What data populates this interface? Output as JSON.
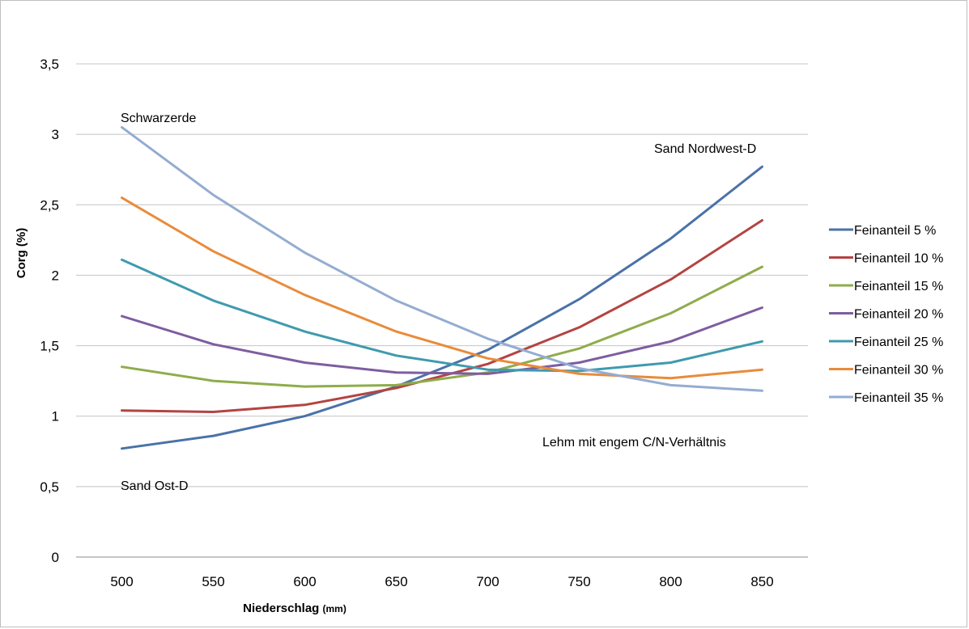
{
  "chart_data": {
    "type": "line",
    "xlabel": "Niederschlag",
    "xlabel_unit": "(mm)",
    "ylabel": "Corg (%)",
    "x": [
      500,
      550,
      600,
      650,
      700,
      750,
      800,
      850
    ],
    "x_tick_labels": [
      "500",
      "550",
      "600",
      "650",
      "700",
      "750",
      "800",
      "850"
    ],
    "ylim": [
      0,
      3.5
    ],
    "y_ticks": [
      0,
      0.5,
      1,
      1.5,
      2,
      2.5,
      3,
      3.5
    ],
    "y_tick_labels": [
      "0",
      "0,5",
      "1",
      "1,5",
      "2",
      "2,5",
      "3",
      "3,5"
    ],
    "grid": "horizontal",
    "legend_position": "right",
    "series": [
      {
        "name": "Feinanteil 5 %",
        "color": "#4a72a8",
        "values": [
          0.77,
          0.86,
          1.0,
          1.21,
          1.47,
          1.83,
          2.26,
          2.77
        ]
      },
      {
        "name": "Feinanteil 10 %",
        "color": "#b34442",
        "values": [
          1.04,
          1.03,
          1.08,
          1.2,
          1.37,
          1.63,
          1.97,
          2.39
        ]
      },
      {
        "name": "Feinanteil 15 %",
        "color": "#8fac4b",
        "values": [
          1.35,
          1.25,
          1.21,
          1.22,
          1.31,
          1.48,
          1.73,
          2.06
        ]
      },
      {
        "name": "Feinanteil 20 %",
        "color": "#7d5da0",
        "values": [
          1.71,
          1.51,
          1.38,
          1.31,
          1.3,
          1.38,
          1.53,
          1.77
        ]
      },
      {
        "name": "Feinanteil 25 %",
        "color": "#3f9aae",
        "values": [
          2.11,
          1.82,
          1.6,
          1.43,
          1.33,
          1.32,
          1.38,
          1.53
        ]
      },
      {
        "name": "Feinanteil 30 %",
        "color": "#e98b3a",
        "values": [
          2.55,
          2.17,
          1.86,
          1.6,
          1.41,
          1.3,
          1.27,
          1.33
        ]
      },
      {
        "name": "Feinanteil 35 %",
        "color": "#94acd1",
        "values": [
          3.05,
          2.57,
          2.16,
          1.82,
          1.55,
          1.34,
          1.22,
          1.18
        ]
      }
    ],
    "annotations": [
      {
        "text": "Schwarzerde"
      },
      {
        "text": "Sand Nordwest-D"
      },
      {
        "text": "Lehm mit engem C/N-Verhältnis"
      },
      {
        "text": "Sand Ost-D"
      }
    ]
  }
}
